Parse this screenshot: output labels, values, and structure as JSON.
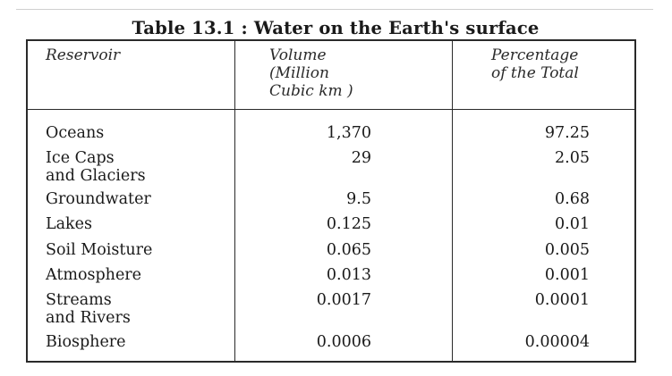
{
  "table": {
    "caption": "Table 13.1 : Water on the Earth's surface",
    "headers": {
      "reservoir": "Reservoir",
      "volume": "Volume\n(Million\nCubic km )",
      "percentage": "Percentage\nof the Total"
    },
    "rows": [
      {
        "reservoir": "Oceans",
        "volume": "1,370",
        "percentage": "97.25"
      },
      {
        "reservoir": "Ice Caps\nand Glaciers",
        "volume": "29",
        "percentage": "2.05"
      },
      {
        "reservoir": "Groundwater",
        "volume": "9.5",
        "percentage": "0.68"
      },
      {
        "reservoir": "Lakes",
        "volume": "0.125",
        "percentage": "0.01"
      },
      {
        "reservoir": "Soil Moisture",
        "volume": "0.065",
        "percentage": "0.005"
      },
      {
        "reservoir": "Atmosphere",
        "volume": "0.013",
        "percentage": "0.001"
      },
      {
        "reservoir": "Streams\nand Rivers",
        "volume": "0.0017",
        "percentage": "0.0001"
      },
      {
        "reservoir": "Biosphere",
        "volume": "0.0006",
        "percentage": "0.00004"
      }
    ]
  }
}
